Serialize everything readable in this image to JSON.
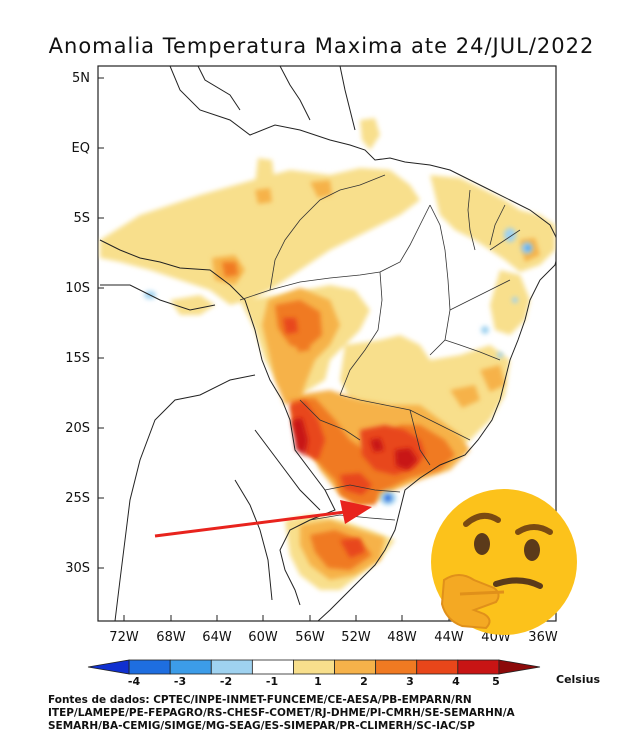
{
  "title": "Anomalia Temperatura Maxima ate 24/JUL/2022",
  "latitude_labels": [
    "5N",
    "EQ",
    "5S",
    "10S",
    "15S",
    "20S",
    "25S",
    "30S"
  ],
  "longitude_labels": [
    "72W",
    "68W",
    "64W",
    "60W",
    "56W",
    "52W",
    "48W",
    "44W",
    "40W",
    "36W"
  ],
  "legend": {
    "ticks": [
      "-4",
      "-3",
      "-2",
      "-1",
      "1",
      "2",
      "3",
      "4",
      "5"
    ],
    "unit": "Celsius",
    "colors": [
      "#1030d0",
      "#1e6ee0",
      "#3c9ce8",
      "#9fd2f0",
      "#ffffff",
      "#f8df8c",
      "#f6b24a",
      "#f07a22",
      "#e8461a",
      "#c81414",
      "#8c0a0a"
    ]
  },
  "sources": [
    "Fontes de dados: CPTEC/INPE-INMET-FUNCEME/CE-AESA/PB-EMPARN/RN",
    "ITEP/LAMEPE/PE-FEPAGRO/RS-CHESF-COMET/RJ-DHME/PI-CMRH/SE-SEMARHN/A",
    "SEMARH/BA-CEMIG/SIMGE/MG-SEAG/ES-SIMEPAR/PR-CLIMERH/SC-IAC/SP"
  ],
  "overlays": {
    "arrow_color": "#e8231d",
    "emoji_icon": "thinking-face-icon"
  }
}
